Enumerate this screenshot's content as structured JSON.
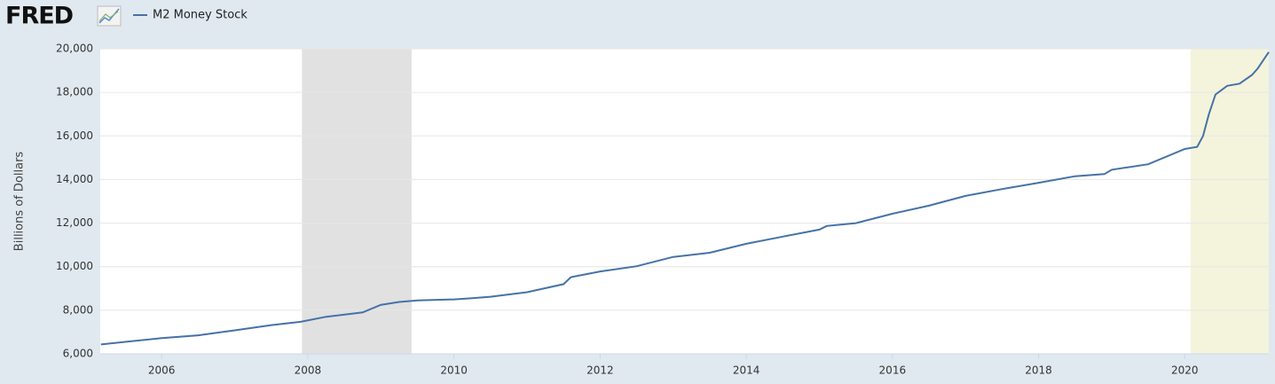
{
  "logo": "FRED",
  "chart_data": {
    "type": "line",
    "y_label": "Billions of Dollars",
    "xlim": [
      2005.16,
      2021.15
    ],
    "xticks": [
      2006,
      2008,
      2010,
      2012,
      2014,
      2016,
      2018,
      2020
    ],
    "ylim": [
      6000,
      20000
    ],
    "yticks": [
      {
        "value": 6000,
        "label": "6,000"
      },
      {
        "value": 8000,
        "label": "8,000"
      },
      {
        "value": 10000,
        "label": "10,000"
      },
      {
        "value": 12000,
        "label": "12,000"
      },
      {
        "value": 14000,
        "label": "14,000"
      },
      {
        "value": 16000,
        "label": "16,000"
      },
      {
        "value": 18000,
        "label": "18,000"
      },
      {
        "value": 20000,
        "label": "20,000"
      }
    ],
    "grid": true,
    "shaded_regions": [
      {
        "x": [
          2007.92,
          2009.42
        ],
        "color": "#e1e1e1"
      },
      {
        "x": [
          2020.08,
          2021.15
        ],
        "color": "#f4f4dc"
      }
    ],
    "x": [
      2005.17,
      2005.5,
      2006.0,
      2006.5,
      2007.0,
      2007.5,
      2007.9,
      2008.25,
      2008.75,
      2009.0,
      2009.25,
      2009.5,
      2010.0,
      2010.25,
      2010.5,
      2011.0,
      2011.5,
      2011.6,
      2012.0,
      2012.5,
      2013.0,
      2013.5,
      2014.0,
      2014.5,
      2015.0,
      2015.1,
      2015.5,
      2016.0,
      2016.5,
      2017.0,
      2017.5,
      2018.0,
      2018.5,
      2018.9,
      2019.0,
      2019.5,
      2020.0,
      2020.17,
      2020.25,
      2020.33,
      2020.42,
      2020.58,
      2020.75,
      2020.92,
      2021.0,
      2021.15
    ],
    "series": [
      {
        "name": "M2 Money Stock",
        "color": "#4572a7",
        "values": [
          6430,
          6550,
          6720,
          6850,
          7080,
          7320,
          7470,
          7700,
          7900,
          8250,
          8380,
          8450,
          8500,
          8550,
          8620,
          8830,
          9200,
          9520,
          9780,
          10020,
          10450,
          10640,
          11050,
          11380,
          11700,
          11870,
          12000,
          12430,
          12800,
          13250,
          13560,
          13850,
          14150,
          14250,
          14450,
          14700,
          15400,
          15500,
          16000,
          17000,
          17900,
          18300,
          18400,
          18800,
          19100,
          19850
        ]
      }
    ]
  }
}
